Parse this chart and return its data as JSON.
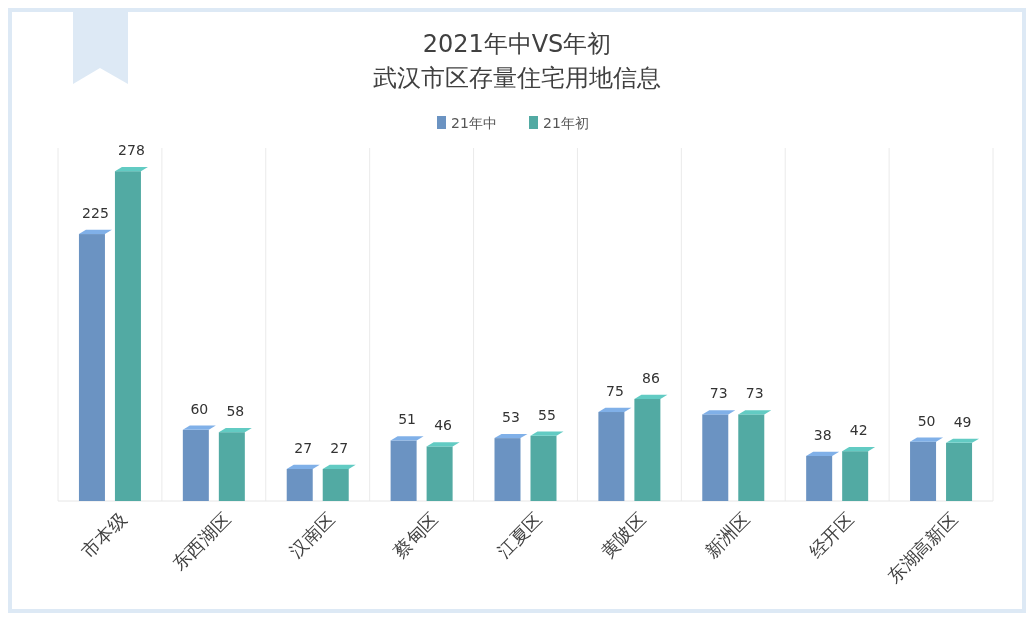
{
  "chart_data": {
    "type": "bar",
    "title": "2021年中VS年初",
    "subtitle": "武汉市区存量住宅用地信息",
    "categories": [
      "市本级",
      "东西湖区",
      "汉南区",
      "蔡甸区",
      "江夏区",
      "黄陂区",
      "新洲区",
      "经开区",
      "东湖高新区"
    ],
    "series": [
      {
        "name": "21年中",
        "color": "#6b93c2",
        "values": [
          225,
          60,
          27,
          51,
          53,
          75,
          73,
          38,
          50
        ]
      },
      {
        "name": "21年初",
        "color": "#52aaa3",
        "values": [
          278,
          58,
          27,
          46,
          55,
          86,
          73,
          42,
          49
        ]
      }
    ],
    "data_labels": true,
    "legend": "top",
    "grid": "x"
  }
}
